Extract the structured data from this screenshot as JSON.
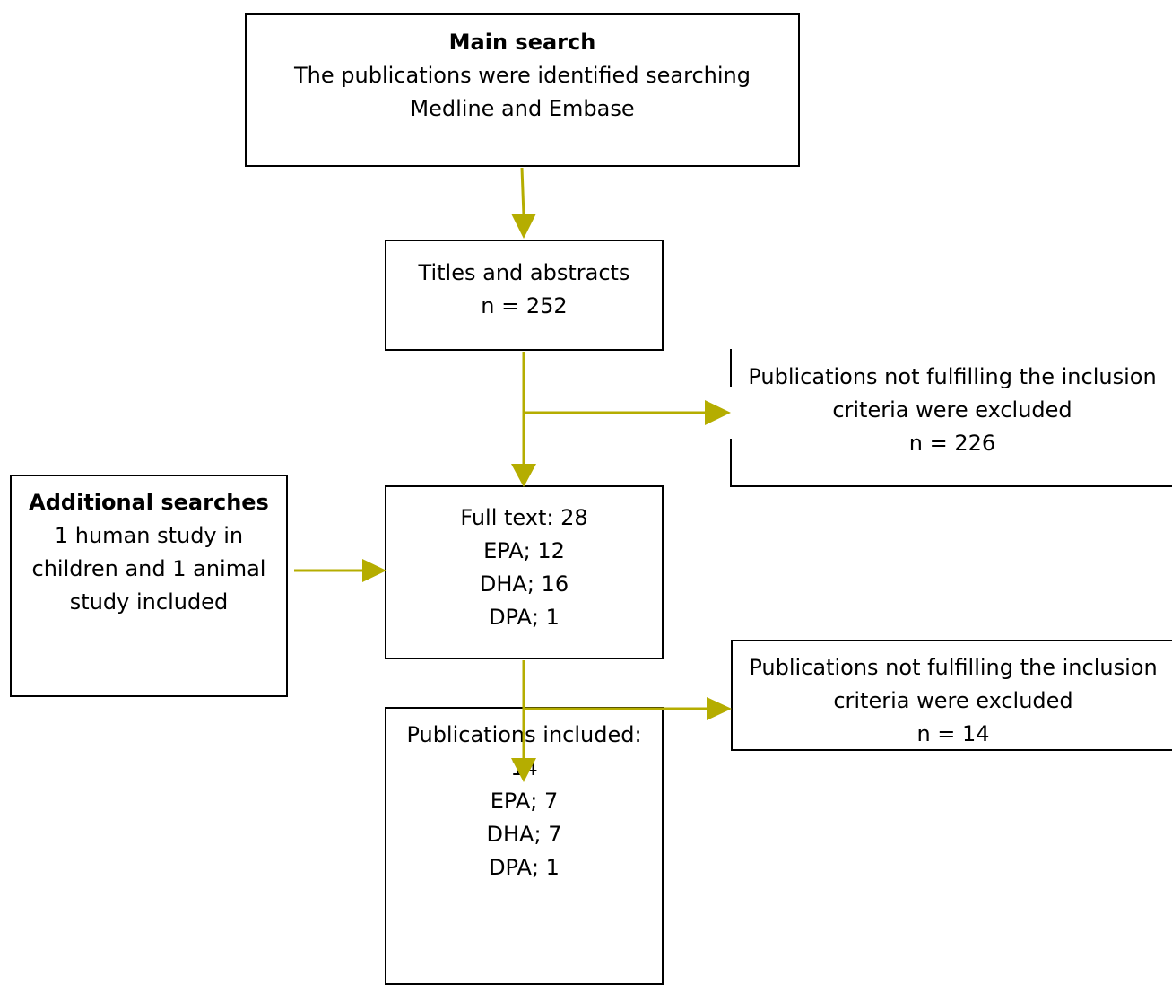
{
  "nodes": {
    "main_search": {
      "title": "Main search",
      "line1": "The publications were identified searching",
      "line2": "Medline and Embase"
    },
    "titles_abstracts": {
      "line1": "Titles and abstracts",
      "line2": "n = 252"
    },
    "excluded_first": {
      "line1": "Publications not fulfilling the inclusion",
      "line2": "criteria were excluded",
      "line3": "n = 226"
    },
    "additional_searches": {
      "title": "Additional searches",
      "line1": "1 human study in",
      "line2": "children and 1 animal",
      "line3": "study included"
    },
    "full_text": {
      "line1": "Full text: 28",
      "line2": "EPA; 12",
      "line3": "DHA; 16",
      "line4": "DPA; 1"
    },
    "excluded_second": {
      "line1": "Publications not fulfilling the inclusion",
      "line2": "criteria were excluded",
      "line3": "n = 14"
    },
    "included": {
      "line1": "Publications included:",
      "line2": "14",
      "line3": "EPA; 7",
      "line4": "DHA; 7",
      "line5": "DPA; 1"
    }
  },
  "colors": {
    "arrow": "#b5ad00",
    "border": "#000000"
  }
}
